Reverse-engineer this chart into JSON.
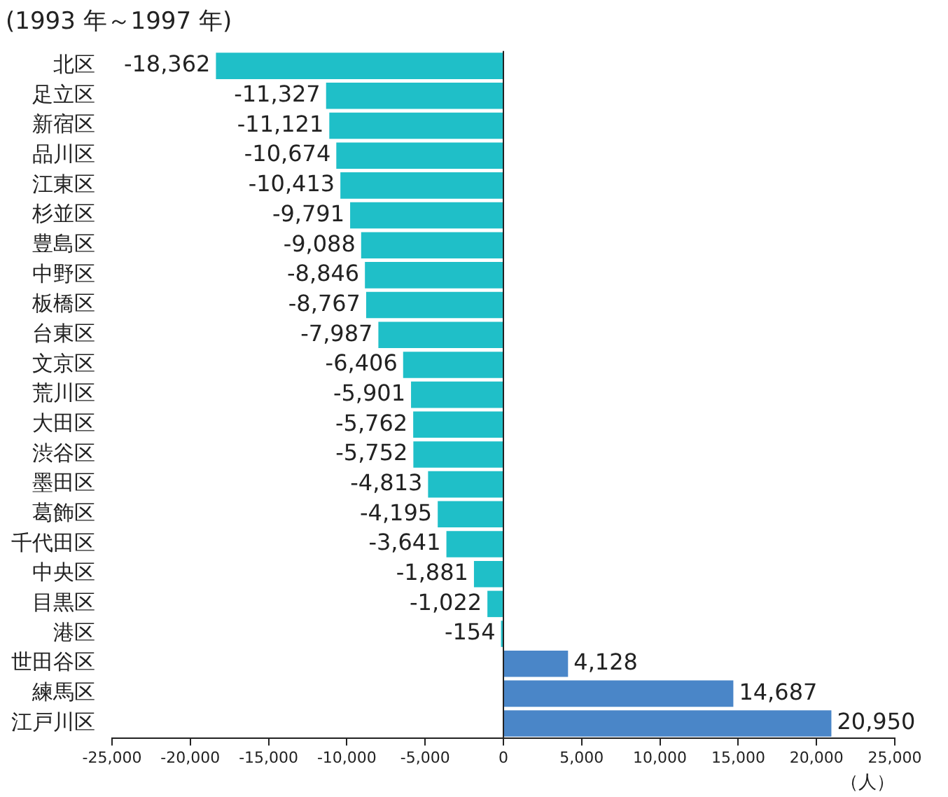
{
  "chart_data": {
    "type": "bar",
    "orientation": "horizontal",
    "title": "(1993 年～1997 年)",
    "xlabel": "（人）",
    "categories": [
      "北区",
      "足立区",
      "新宿区",
      "品川区",
      "江東区",
      "杉並区",
      "豊島区",
      "中野区",
      "板橋区",
      "台東区",
      "文京区",
      "荒川区",
      "大田区",
      "渋谷区",
      "墨田区",
      "葛飾区",
      "千代田区",
      "中央区",
      "目黒区",
      "港区",
      "世田谷区",
      "練馬区",
      "江戸川区"
    ],
    "values": [
      -18362,
      -11327,
      -11121,
      -10674,
      -10413,
      -9791,
      -9088,
      -8846,
      -8767,
      -7987,
      -6406,
      -5901,
      -5762,
      -5752,
      -4813,
      -4195,
      -3641,
      -1881,
      -1022,
      -154,
      4128,
      14687,
      20950
    ],
    "value_labels": [
      "-18,362",
      "-11,327",
      "-11,121",
      "-10,674",
      "-10,413",
      "-9,791",
      "-9,088",
      "-8,846",
      "-8,767",
      "-7,987",
      "-6,406",
      "-5,901",
      "-5,762",
      "-5,752",
      "-4,813",
      "-4,195",
      "-3,641",
      "-1,881",
      "-1,022",
      "-154",
      "4,128",
      "14,687",
      "20,950"
    ],
    "colors": [
      "#1fbfc8",
      "#1fbfc8",
      "#1fbfc8",
      "#1fbfc8",
      "#1fbfc8",
      "#1fbfc8",
      "#1fbfc8",
      "#1fbfc8",
      "#1fbfc8",
      "#1fbfc8",
      "#1fbfc8",
      "#1fbfc8",
      "#1fbfc8",
      "#1fbfc8",
      "#1fbfc8",
      "#1fbfc8",
      "#1fbfc8",
      "#1fbfc8",
      "#1fbfc8",
      "#1fbfc8",
      "#4a86c8",
      "#4a86c8",
      "#4a86c8"
    ],
    "xlim": [
      -25000,
      25000
    ],
    "xticks": [
      {
        "value": -25000,
        "label": "-25,000"
      },
      {
        "value": -20000,
        "label": "-20,000"
      },
      {
        "value": -15000,
        "label": "-15,000"
      },
      {
        "value": -10000,
        "label": "-10,000"
      },
      {
        "value": -5000,
        "label": "-5,000"
      },
      0,
      {
        "value": 5000,
        "label": "5,000"
      },
      {
        "value": 10000,
        "label": "10,000"
      },
      {
        "value": 15000,
        "label": "15,000"
      },
      {
        "value": 20000,
        "label": "20,000"
      },
      {
        "value": 25000,
        "label": "25,000"
      }
    ],
    "legend": false
  }
}
